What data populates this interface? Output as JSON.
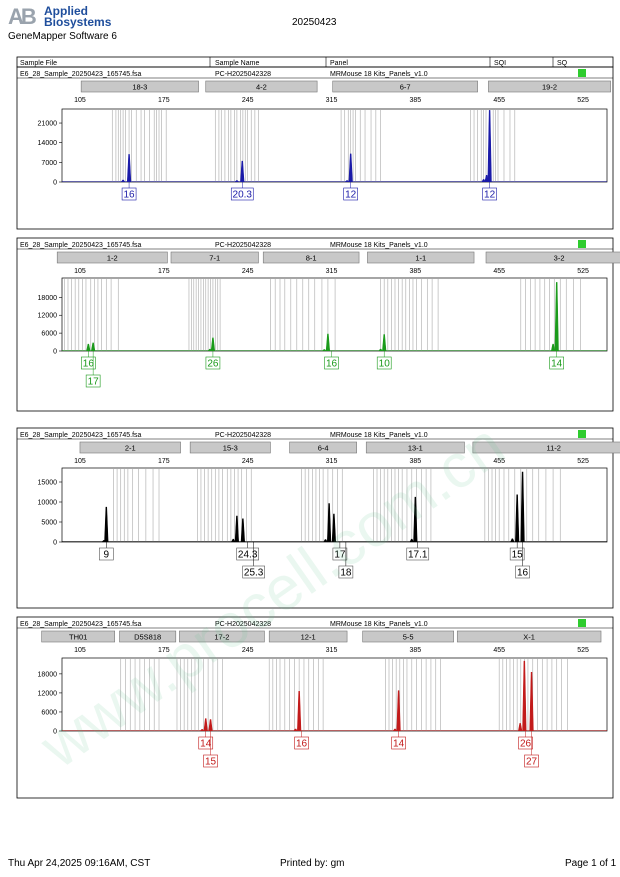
{
  "header": {
    "logo_text_line1": "Applied",
    "logo_text_line2": "Biosystems",
    "software": "GeneMapper Software 6",
    "date": "20250423"
  },
  "table_header": {
    "sample_file": "Sample File",
    "sample_name": "Sample Name",
    "panel": "Panel",
    "sqi": "SQI",
    "sq": "SQ"
  },
  "footer": {
    "datetime": "Thu Apr 24,2025 09:16AM, CST",
    "printed_by": "Printed by: gm",
    "page": "Page 1 of 1"
  },
  "watermark": "www.procell.com.cn",
  "colors": {
    "blue": "#1a1aa8",
    "green": "#1a9a1a",
    "black": "#000000",
    "red": "#c21a1a",
    "status": "#2ecc2e"
  },
  "chart_data": [
    {
      "type": "line",
      "dye": "blue",
      "sample_file": "E6_28_Sample_20250423_165745.fsa",
      "sample_name": "PC-H2025042328",
      "panel": "MRMouse 18 Kits_Panels_v1.0",
      "x_ticks": [
        105,
        175,
        245,
        315,
        385,
        455,
        525
      ],
      "xlim": [
        90,
        545
      ],
      "y_ticks": [
        0,
        7000,
        14000,
        21000
      ],
      "ylim": [
        0,
        26000
      ],
      "markers": [
        {
          "label": "18-3",
          "x0": 106,
          "x1": 204
        },
        {
          "label": "4-2",
          "x0": 210,
          "x1": 303
        },
        {
          "label": "6-7",
          "x0": 316,
          "x1": 437
        },
        {
          "label": "19-2",
          "x0": 446,
          "x1": 548
        }
      ],
      "bins": [
        132,
        135,
        137,
        139,
        141,
        143,
        146,
        148,
        152,
        156,
        159,
        163,
        167,
        169,
        171,
        173,
        177,
        218,
        221,
        223,
        226,
        229,
        231,
        234,
        236,
        239,
        241,
        243,
        245,
        248,
        251,
        254,
        323,
        326,
        329,
        331,
        333,
        335,
        339,
        343,
        348,
        352,
        356,
        431,
        434,
        437,
        440,
        442,
        444,
        447,
        450,
        452,
        454,
        459,
        464,
        468
      ],
      "peaks": [
        {
          "x": 146,
          "y": 9800
        },
        {
          "x": 141,
          "y": 700
        },
        {
          "x": 240.5,
          "y": 7400
        },
        {
          "x": 236,
          "y": 500
        },
        {
          "x": 331,
          "y": 10000
        },
        {
          "x": 328,
          "y": 500
        },
        {
          "x": 447,
          "y": 25500
        },
        {
          "x": 444.5,
          "y": 2400
        },
        {
          "x": 442,
          "y": 900
        }
      ],
      "alleles": [
        {
          "label": "16",
          "x": 146,
          "row": 0
        },
        {
          "label": "20.3",
          "x": 240.5,
          "row": 0
        },
        {
          "label": "12",
          "x": 331,
          "row": 0
        },
        {
          "label": "12",
          "x": 447,
          "row": 0
        }
      ]
    },
    {
      "type": "line",
      "dye": "green",
      "sample_file": "E6_28_Sample_20250423_165745.fsa",
      "sample_name": "PC-H2025042328",
      "panel": "MRMouse 18 Kits_Panels_v1.0",
      "x_ticks": [
        105,
        175,
        245,
        315,
        385,
        455,
        525
      ],
      "xlim": [
        90,
        545
      ],
      "y_ticks": [
        0,
        6000,
        12000,
        18000
      ],
      "ylim": [
        0,
        24500
      ],
      "markers": [
        {
          "label": "1-2",
          "x0": 86,
          "x1": 178
        },
        {
          "label": "7-1",
          "x0": 181,
          "x1": 254
        },
        {
          "label": "8-1",
          "x0": 258,
          "x1": 338
        },
        {
          "label": "1-1",
          "x0": 345,
          "x1": 434
        },
        {
          "label": "3-2",
          "x0": 444,
          "x1": 566
        }
      ],
      "bins": [
        92,
        95,
        98,
        101,
        104,
        107,
        110,
        114,
        117,
        120,
        123,
        127,
        131,
        137,
        196,
        198,
        200,
        202,
        204,
        206,
        208,
        210,
        212,
        214,
        216,
        218,
        220,
        222,
        264,
        268,
        272,
        276,
        281,
        286,
        291,
        296,
        301,
        307,
        312,
        318,
        356,
        359,
        362,
        365,
        368,
        371,
        374,
        377,
        380,
        383,
        386,
        390,
        395,
        399,
        404,
        473,
        477,
        481,
        485,
        489,
        493,
        497,
        501,
        506,
        511,
        517,
        523
      ],
      "peaks": [
        {
          "x": 112,
          "y": 2300
        },
        {
          "x": 116,
          "y": 2700
        },
        {
          "x": 216,
          "y": 4400
        },
        {
          "x": 213.5,
          "y": 600
        },
        {
          "x": 312,
          "y": 5700
        },
        {
          "x": 309,
          "y": 500
        },
        {
          "x": 359,
          "y": 5500
        },
        {
          "x": 356,
          "y": 600
        },
        {
          "x": 503,
          "y": 23000
        },
        {
          "x": 500,
          "y": 2300
        }
      ],
      "alleles": [
        {
          "label": "16",
          "x": 112,
          "row": 0
        },
        {
          "label": "17",
          "x": 116,
          "row": 1
        },
        {
          "label": "26",
          "x": 216,
          "row": 0
        },
        {
          "label": "16",
          "x": 315,
          "row": 0
        },
        {
          "label": "10",
          "x": 359,
          "row": 0
        },
        {
          "label": "14",
          "x": 503,
          "row": 0
        }
      ]
    },
    {
      "type": "line",
      "dye": "black",
      "sample_file": "E6_28_Sample_20250423_165745.fsa",
      "sample_name": "PC-H2025042328",
      "panel": "MRMouse 18 Kits_Panels_v1.0",
      "x_ticks": [
        105,
        175,
        245,
        315,
        385,
        455,
        525
      ],
      "xlim": [
        90,
        545
      ],
      "y_ticks": [
        0,
        5000,
        10000,
        15000
      ],
      "ylim": [
        0,
        18500
      ],
      "markers": [
        {
          "label": "2-1",
          "x0": 105,
          "x1": 189
        },
        {
          "label": "15-3",
          "x0": 197,
          "x1": 264
        },
        {
          "label": "6-4",
          "x0": 280,
          "x1": 336
        },
        {
          "label": "13-1",
          "x0": 344,
          "x1": 426
        },
        {
          "label": "11-2",
          "x0": 433,
          "x1": 568
        }
      ],
      "bins": [
        133,
        136,
        139,
        142,
        145,
        149,
        154,
        160,
        166,
        171,
        203,
        206,
        209,
        212,
        215,
        218,
        221,
        224,
        228,
        231,
        234,
        237,
        240,
        244,
        248,
        290,
        293,
        296,
        299,
        302,
        305,
        308,
        312,
        316,
        320,
        324,
        350,
        353,
        356,
        359,
        362,
        365,
        368,
        371,
        374,
        378,
        382,
        386,
        390,
        394,
        398,
        443,
        446,
        449,
        452,
        455,
        459,
        463,
        468,
        473,
        478,
        483,
        488,
        494,
        500,
        506
      ],
      "peaks": [
        {
          "x": 127,
          "y": 8700
        },
        {
          "x": 125,
          "y": 400
        },
        {
          "x": 236,
          "y": 6500
        },
        {
          "x": 241,
          "y": 5800
        },
        {
          "x": 233,
          "y": 700
        },
        {
          "x": 313,
          "y": 9600
        },
        {
          "x": 317,
          "y": 7000
        },
        {
          "x": 310,
          "y": 600
        },
        {
          "x": 385,
          "y": 11200
        },
        {
          "x": 382,
          "y": 700
        },
        {
          "x": 470,
          "y": 11800
        },
        {
          "x": 474.5,
          "y": 17500
        },
        {
          "x": 466,
          "y": 800
        }
      ],
      "alleles": [
        {
          "label": "9",
          "x": 127,
          "row": 0
        },
        {
          "label": "24.3",
          "x": 245,
          "row": 0
        },
        {
          "label": "25.3",
          "x": 250,
          "row": 1
        },
        {
          "label": "17",
          "x": 322,
          "row": 0
        },
        {
          "label": "18",
          "x": 327,
          "row": 1
        },
        {
          "label": "17.1",
          "x": 387,
          "row": 0
        },
        {
          "label": "15",
          "x": 470,
          "row": 0
        },
        {
          "label": "16",
          "x": 474.5,
          "row": 1
        }
      ]
    },
    {
      "type": "line",
      "dye": "red",
      "sample_file": "E6_28_Sample_20250423_165745.fsa",
      "sample_name": "PC-H2025042328",
      "panel": "MRMouse 18 Kits_Panels_v1.0",
      "x_ticks": [
        105,
        175,
        245,
        315,
        385,
        455,
        525
      ],
      "xlim": [
        90,
        545
      ],
      "y_ticks": [
        0,
        6000,
        12000,
        18000
      ],
      "ylim": [
        0,
        23000
      ],
      "markers": [
        {
          "label": "TH01",
          "x0": 73,
          "x1": 134
        },
        {
          "label": "D5S818",
          "x0": 138,
          "x1": 185
        },
        {
          "label": "17-2",
          "x0": 188,
          "x1": 259
        },
        {
          "label": "12-1",
          "x0": 263,
          "x1": 328
        },
        {
          "label": "5-5",
          "x0": 341,
          "x1": 417
        },
        {
          "label": "X-1",
          "x0": 420,
          "x1": 540
        }
      ],
      "bins": [
        139,
        143,
        147,
        151,
        155,
        159,
        163,
        167,
        171,
        186,
        189,
        192,
        195,
        198,
        201,
        204,
        208,
        212,
        216,
        220,
        224,
        263,
        266,
        269,
        272,
        276,
        280,
        284,
        288,
        292,
        296,
        300,
        304,
        308,
        360,
        363,
        366,
        369,
        372,
        375,
        378,
        382,
        386,
        390,
        394,
        398,
        402,
        406,
        455,
        458,
        461,
        464,
        467,
        470,
        473,
        476,
        479,
        483,
        487,
        491,
        495,
        499,
        503,
        507,
        512
      ],
      "peaks": [
        {
          "x": 210,
          "y": 3900
        },
        {
          "x": 214,
          "y": 3600
        },
        {
          "x": 207,
          "y": 500
        },
        {
          "x": 288,
          "y": 12500
        },
        {
          "x": 285,
          "y": 600
        },
        {
          "x": 371,
          "y": 12700
        },
        {
          "x": 368,
          "y": 600
        },
        {
          "x": 476,
          "y": 22000
        },
        {
          "x": 482,
          "y": 18500
        },
        {
          "x": 472.5,
          "y": 2400
        }
      ],
      "alleles": [
        {
          "label": "14",
          "x": 210,
          "row": 0
        },
        {
          "label": "15",
          "x": 214,
          "row": 1
        },
        {
          "label": "16",
          "x": 290,
          "row": 0
        },
        {
          "label": "14",
          "x": 371,
          "row": 0
        },
        {
          "label": "26",
          "x": 477,
          "row": 0
        },
        {
          "label": "27",
          "x": 482,
          "row": 1
        }
      ]
    }
  ]
}
